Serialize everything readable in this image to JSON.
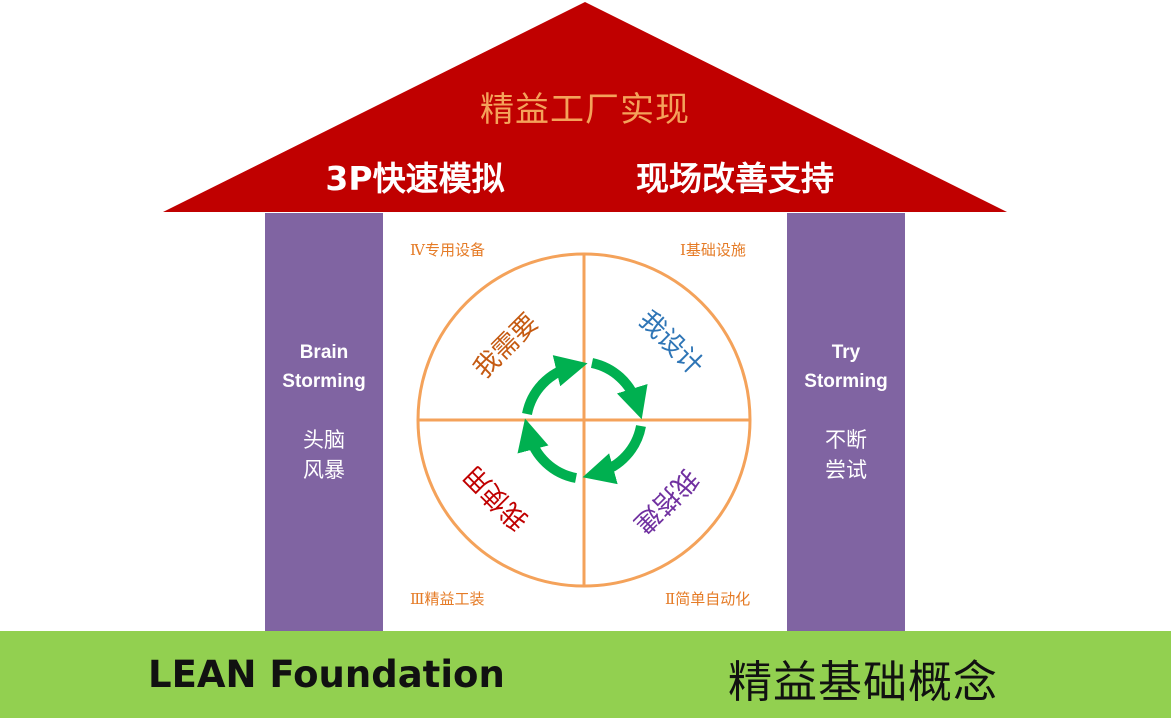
{
  "roof": {
    "title": "精益工厂实现",
    "left_text": "3P快速模拟",
    "right_text": "现场改善支持",
    "color": "#c00000",
    "title_color": "#f4a25a"
  },
  "pillars": {
    "left": {
      "en_line1": "Brain",
      "en_line2": "Storming",
      "cn_line1": "头脑",
      "cn_line2": "风暴"
    },
    "right": {
      "en_line1": "Try",
      "en_line2": "Storming",
      "cn_line1": "不断",
      "cn_line2": "尝试"
    },
    "color": "#8064a2"
  },
  "quadrants": {
    "top_left": {
      "corner_label": "Ⅳ专用设备",
      "center_text": "我需要",
      "color": "#c55a11"
    },
    "top_right": {
      "corner_label": "Ⅰ基础设施",
      "center_text": "我设计",
      "color": "#2e75b6"
    },
    "bottom_right": {
      "corner_label": "Ⅱ简单自动化",
      "center_text": "我搭建",
      "color": "#7030a0"
    },
    "bottom_left": {
      "corner_label": "Ⅲ精益工装",
      "center_text": "我使用",
      "color": "#c00000"
    },
    "circle_color": "#f4a25a",
    "arrow_color": "#00b050"
  },
  "foundation": {
    "en": "LEAN Foundation",
    "cn": "精益基础概念",
    "color": "#92d050"
  }
}
